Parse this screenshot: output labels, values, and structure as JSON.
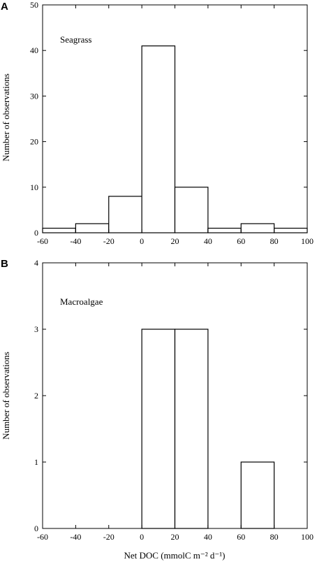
{
  "chart_data": [
    {
      "type": "bar",
      "panel_letter": "A",
      "title": "Seagrass",
      "xlabel": "",
      "ylabel": "Number of observations",
      "bin_edges": [
        -60,
        -40,
        -20,
        0,
        20,
        40,
        60,
        80,
        100
      ],
      "values": [
        1,
        2,
        8,
        41,
        10,
        1,
        2,
        1
      ],
      "xlim": [
        -60,
        100
      ],
      "ylim": [
        0,
        50
      ],
      "xticks": [
        "-60",
        "-40",
        "-20",
        "0",
        "20",
        "40",
        "60",
        "80",
        "100"
      ],
      "yticks": [
        "0",
        "10",
        "20",
        "30",
        "40",
        "50"
      ],
      "grid": false
    },
    {
      "type": "bar",
      "panel_letter": "B",
      "title": "Macroalgae",
      "xlabel": "Net DOC (mmolC m⁻² d⁻¹)",
      "ylabel": "Number of observations",
      "bin_edges": [
        0,
        20,
        40,
        60,
        80
      ],
      "values": [
        3,
        3,
        0,
        1
      ],
      "xlim": [
        -60,
        100
      ],
      "ylim": [
        0,
        4
      ],
      "xticks": [
        "-60",
        "-40",
        "-20",
        "0",
        "20",
        "40",
        "60",
        "80",
        "100"
      ],
      "yticks": [
        "0",
        "1",
        "2",
        "3",
        "4"
      ],
      "grid": false
    }
  ]
}
